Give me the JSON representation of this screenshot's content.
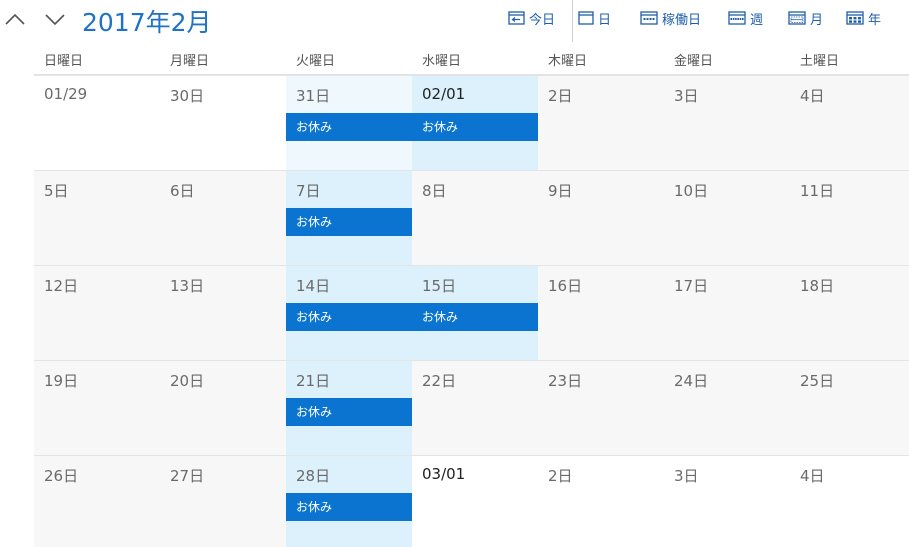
{
  "header": {
    "title": "2017年2月",
    "prev_icon": "chevron-up-icon",
    "next_icon": "chevron-down-icon"
  },
  "toolbar": {
    "today_label": "今日",
    "day_label": "日",
    "workweek_label": "稼働日",
    "week_label": "週",
    "month_label": "月",
    "year_label": "年"
  },
  "weekdays": [
    "日曜日",
    "月曜日",
    "火曜日",
    "水曜日",
    "木曜日",
    "金曜日",
    "土曜日"
  ],
  "weeks": [
    [
      {
        "label": "01/29",
        "type": "other"
      },
      {
        "label": "30日",
        "type": "other"
      },
      {
        "label": "31日",
        "type": "tuesday-other",
        "event": "お休み"
      },
      {
        "label": "02/01",
        "type": "today",
        "event": "お休み",
        "dark": true
      },
      {
        "label": "2日",
        "type": "cur"
      },
      {
        "label": "3日",
        "type": "cur"
      },
      {
        "label": "4日",
        "type": "cur"
      }
    ],
    [
      {
        "label": "5日",
        "type": "cur"
      },
      {
        "label": "6日",
        "type": "cur"
      },
      {
        "label": "7日",
        "type": "tuesday",
        "event": "お休み"
      },
      {
        "label": "8日",
        "type": "cur"
      },
      {
        "label": "9日",
        "type": "cur"
      },
      {
        "label": "10日",
        "type": "cur"
      },
      {
        "label": "11日",
        "type": "cur"
      }
    ],
    [
      {
        "label": "12日",
        "type": "cur"
      },
      {
        "label": "13日",
        "type": "cur"
      },
      {
        "label": "14日",
        "type": "tuesday",
        "event": "お休み"
      },
      {
        "label": "15日",
        "type": "tuesday",
        "event": "お休み"
      },
      {
        "label": "16日",
        "type": "cur"
      },
      {
        "label": "17日",
        "type": "cur"
      },
      {
        "label": "18日",
        "type": "cur"
      }
    ],
    [
      {
        "label": "19日",
        "type": "cur"
      },
      {
        "label": "20日",
        "type": "cur"
      },
      {
        "label": "21日",
        "type": "tuesday",
        "event": "お休み"
      },
      {
        "label": "22日",
        "type": "cur"
      },
      {
        "label": "23日",
        "type": "cur"
      },
      {
        "label": "24日",
        "type": "cur"
      },
      {
        "label": "25日",
        "type": "cur"
      }
    ],
    [
      {
        "label": "26日",
        "type": "cur"
      },
      {
        "label": "27日",
        "type": "cur"
      },
      {
        "label": "28日",
        "type": "tuesday",
        "event": "お休み"
      },
      {
        "label": "03/01",
        "type": "other",
        "dark": true
      },
      {
        "label": "2日",
        "type": "other"
      },
      {
        "label": "3日",
        "type": "other"
      },
      {
        "label": "4日",
        "type": "other"
      }
    ]
  ],
  "colors": {
    "accent": "#1f72c4",
    "event": "#0a74d0",
    "highlight": "#dcf1fb"
  }
}
